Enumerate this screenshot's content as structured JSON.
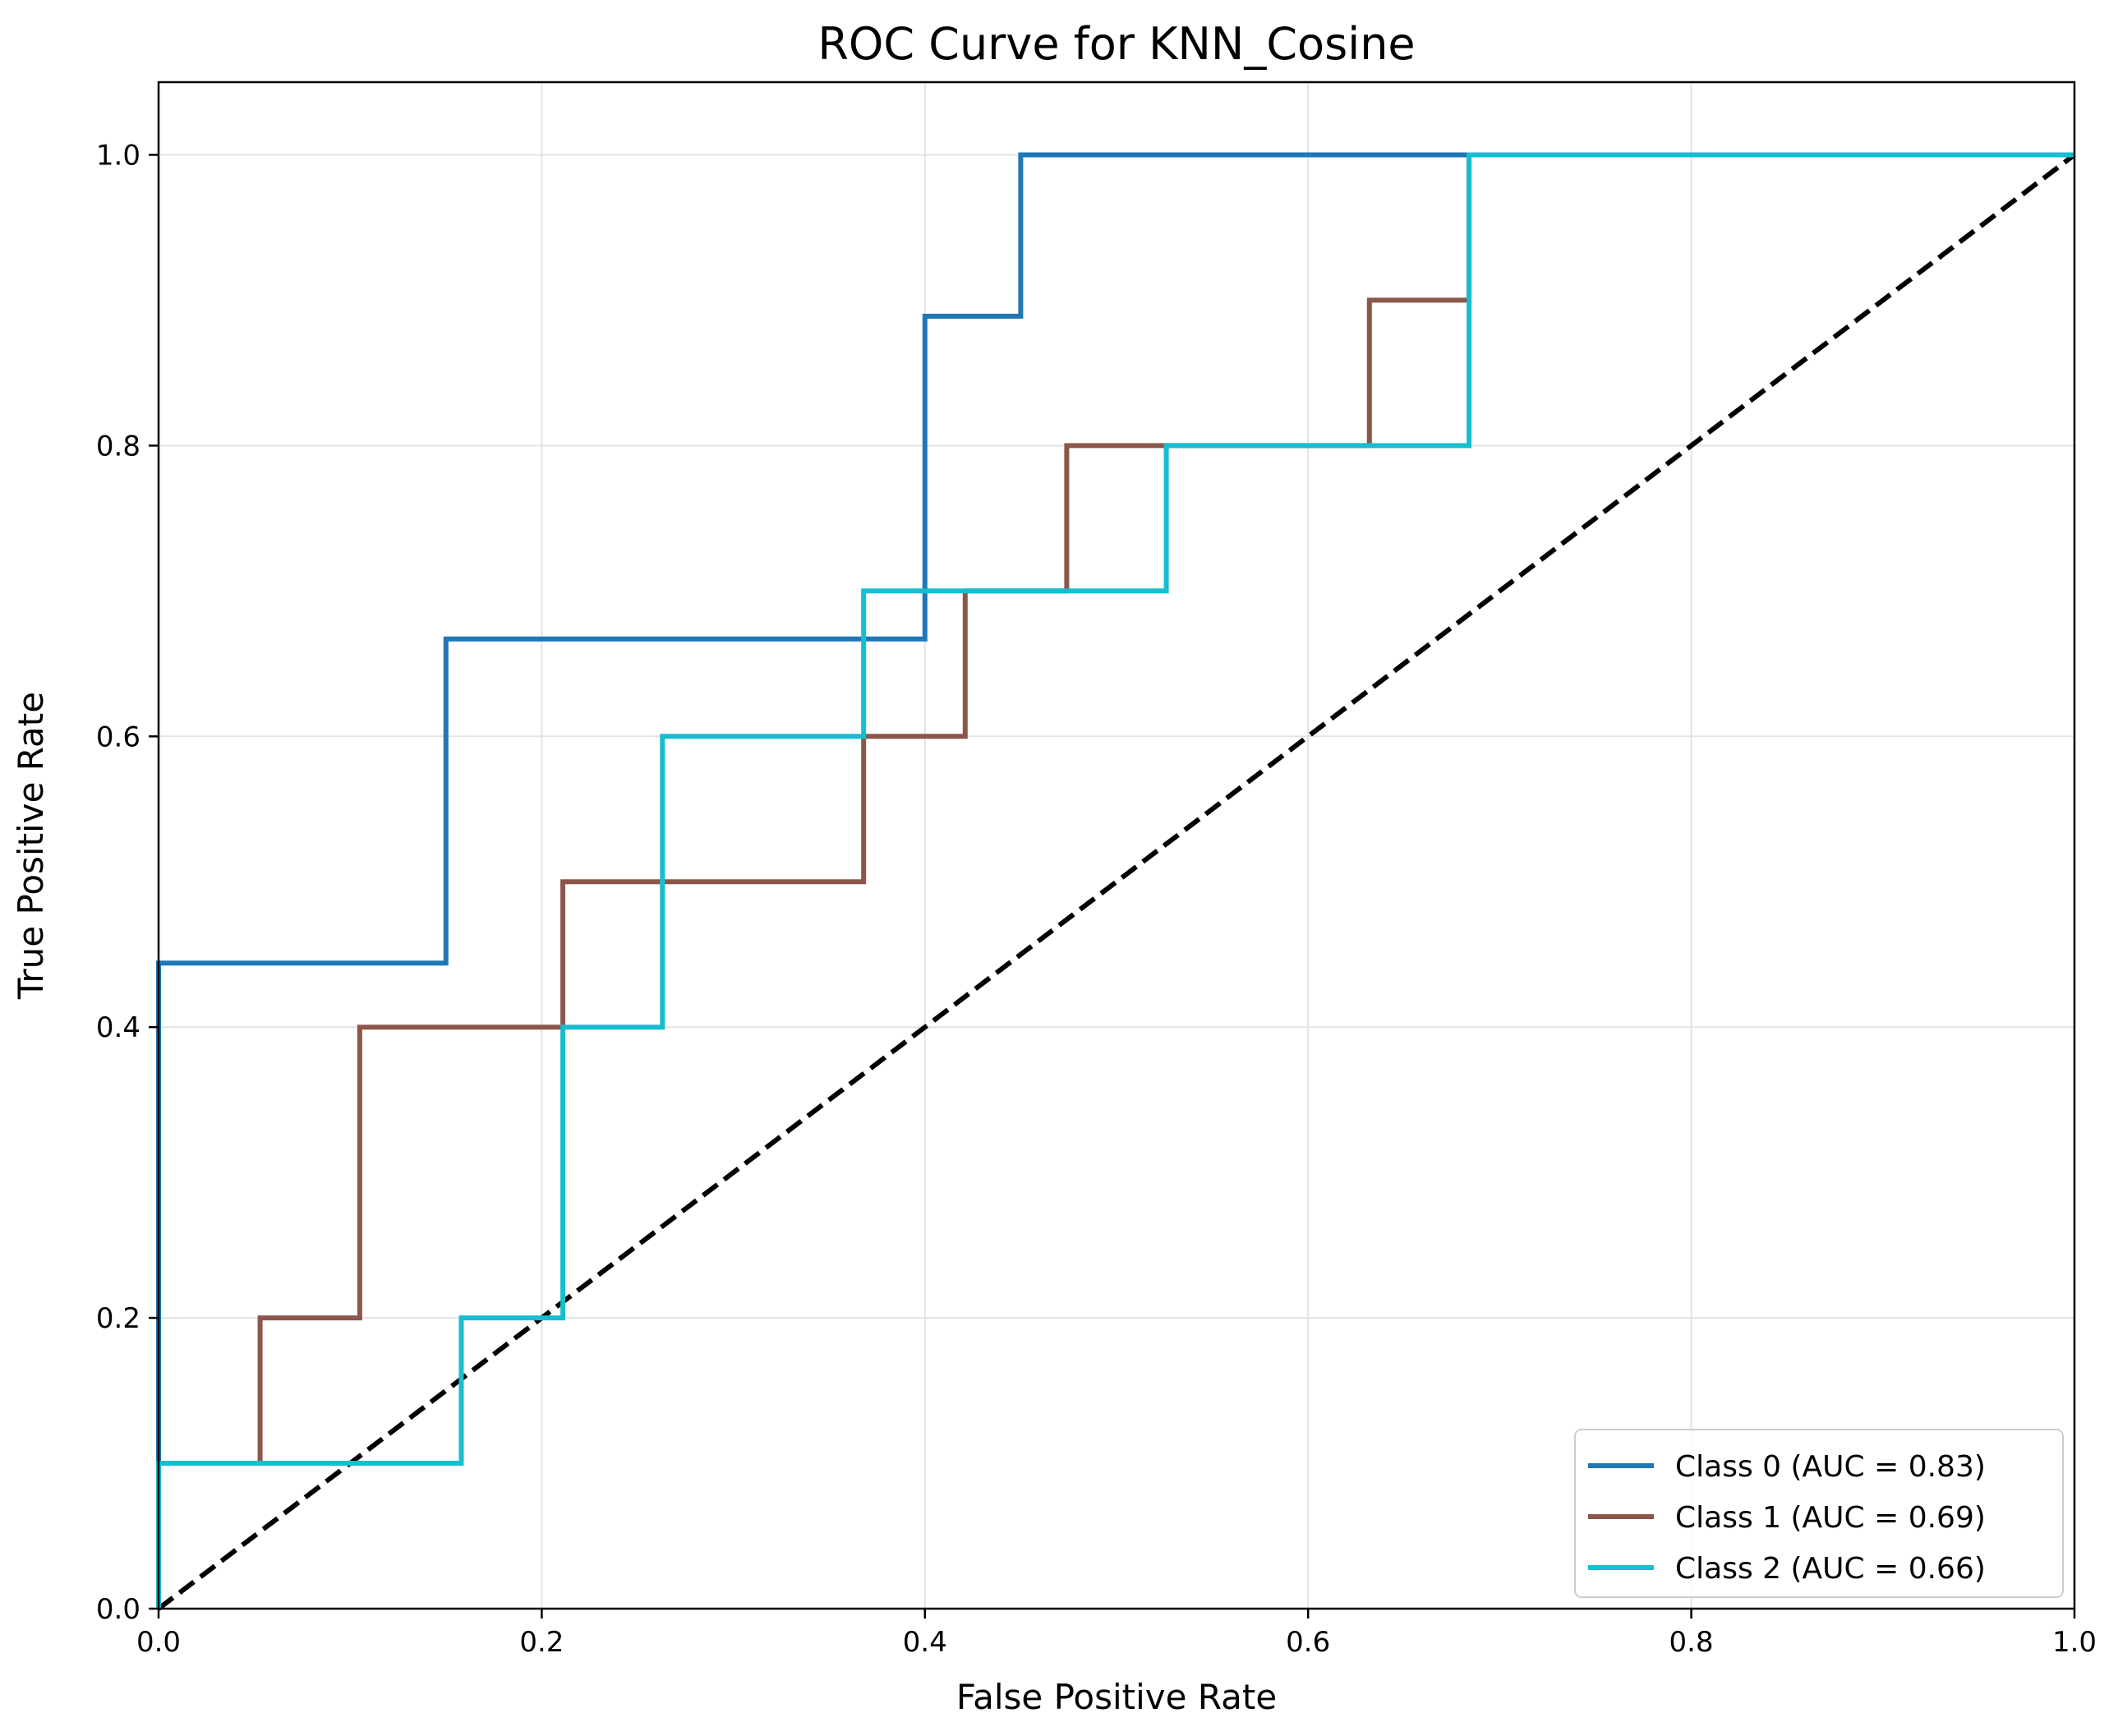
{
  "chart_data": {
    "type": "line",
    "title": "ROC Curve for KNN_Cosine",
    "xlabel": "False Positive Rate",
    "ylabel": "True Positive Rate",
    "xlim": [
      0.0,
      1.0
    ],
    "ylim": [
      0.0,
      1.05
    ],
    "xticks": [
      0.0,
      0.2,
      0.4,
      0.6,
      0.8,
      1.0
    ],
    "xtick_labels": [
      "0.0",
      "0.2",
      "0.4",
      "0.6",
      "0.8",
      "1.0"
    ],
    "yticks": [
      0.0,
      0.2,
      0.4,
      0.6,
      0.8,
      1.0
    ],
    "ytick_labels": [
      "0.0",
      "0.2",
      "0.4",
      "0.6",
      "0.8",
      "1.0"
    ],
    "grid": true,
    "legend_position": "lower-right",
    "series": [
      {
        "name": "Class 0 (AUC = 0.83)",
        "color": "#1f77b4",
        "x": [
          0.0,
          0.0,
          0.15,
          0.15,
          0.4,
          0.4,
          0.45,
          0.45,
          1.0
        ],
        "y": [
          0.0,
          0.444,
          0.444,
          0.667,
          0.667,
          0.889,
          0.889,
          1.0,
          1.0
        ]
      },
      {
        "name": "Class 1 (AUC = 0.69)",
        "color": "#8c564b",
        "x": [
          0.0,
          0.0,
          0.053,
          0.053,
          0.105,
          0.105,
          0.211,
          0.211,
          0.368,
          0.368,
          0.421,
          0.421,
          0.474,
          0.474,
          0.632,
          0.632,
          0.684,
          0.684,
          1.0
        ],
        "y": [
          0.0,
          0.1,
          0.1,
          0.2,
          0.2,
          0.4,
          0.4,
          0.5,
          0.5,
          0.6,
          0.6,
          0.7,
          0.7,
          0.8,
          0.8,
          0.9,
          0.9,
          1.0,
          1.0
        ]
      },
      {
        "name": "Class 2 (AUC = 0.66)",
        "color": "#17becf",
        "x": [
          0.0,
          0.0,
          0.158,
          0.158,
          0.211,
          0.211,
          0.263,
          0.263,
          0.368,
          0.368,
          0.526,
          0.526,
          0.684,
          0.684,
          1.0
        ],
        "y": [
          0.0,
          0.1,
          0.1,
          0.2,
          0.2,
          0.4,
          0.4,
          0.6,
          0.6,
          0.7,
          0.7,
          0.8,
          0.8,
          1.0,
          1.0
        ]
      }
    ],
    "reference_line": {
      "x": [
        0.0,
        1.0
      ],
      "y": [
        0.0,
        1.0
      ],
      "color": "#000000",
      "style": "dashed"
    }
  }
}
